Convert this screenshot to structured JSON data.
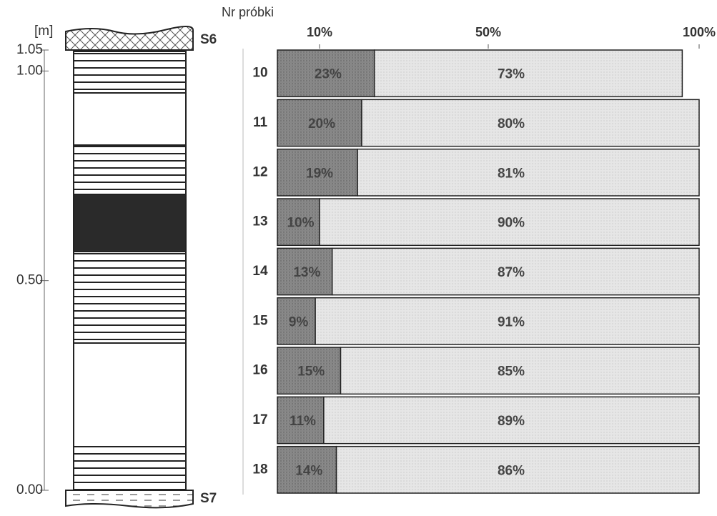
{
  "chart_data": [
    {
      "type": "column",
      "ylabel": "[m]",
      "top_label": "S6",
      "bottom_label": "S7",
      "ylim": [
        0,
        1.05
      ],
      "yticks": [
        {
          "value": 0,
          "label": "0.00"
        },
        {
          "value": 0.5,
          "label": "0.50"
        },
        {
          "value": 1,
          "label": "1.00"
        },
        {
          "value": 1.05,
          "label": "1.05"
        }
      ]
    },
    {
      "type": "bar",
      "title": "Nr próbki",
      "orientation": "horizontal",
      "stacked": true,
      "categories": [
        "10",
        "11",
        "12",
        "13",
        "14",
        "15",
        "16",
        "17",
        "18"
      ],
      "series": [
        {
          "color": "#8c8c8c",
          "values": [
            23,
            20,
            19,
            10,
            13,
            9,
            15,
            11,
            14
          ],
          "value_labels": [
            "23%",
            "20%",
            "19%",
            "10%",
            "13%",
            "9%",
            "15%",
            "11%",
            "14%"
          ]
        },
        {
          "color": "#e6e6e6",
          "values": [
            73,
            80,
            81,
            90,
            87,
            91,
            85,
            89,
            86
          ],
          "value_labels": [
            "73%",
            "80%",
            "81%",
            "90%",
            "87%",
            "91%",
            "85%",
            "89%",
            "86%"
          ]
        }
      ],
      "xlim": [
        0,
        100
      ],
      "xticks": [
        {
          "value": 10,
          "label": "10%"
        },
        {
          "value": 50,
          "label": "50%"
        },
        {
          "value": 100,
          "label": "100%"
        }
      ]
    }
  ]
}
